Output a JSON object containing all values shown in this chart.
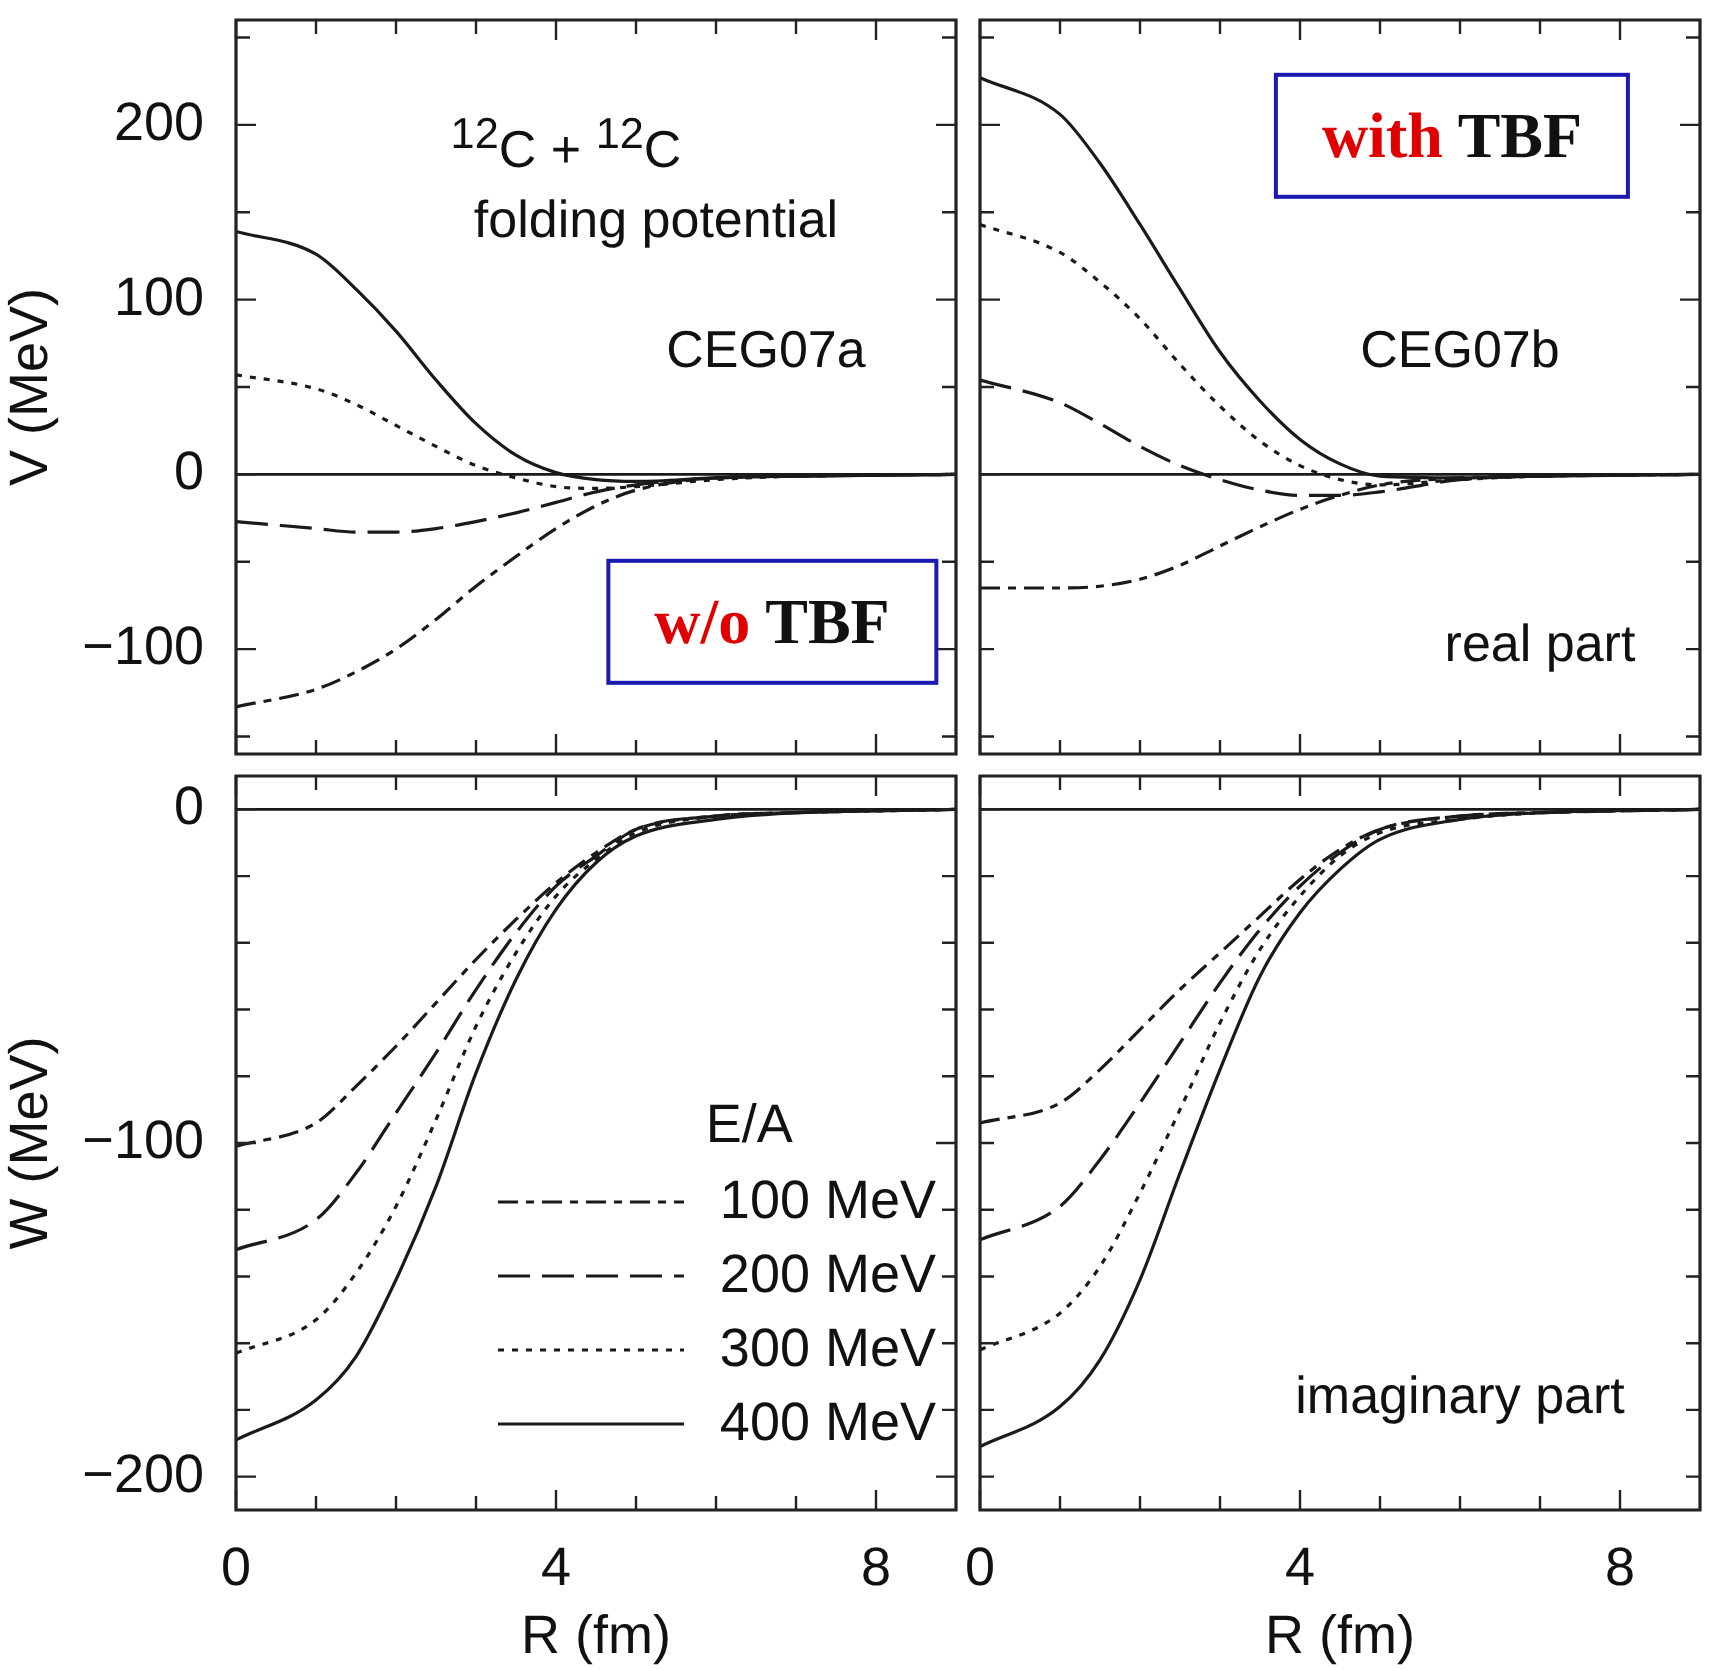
{
  "chart_data": [
    {
      "type": "line",
      "ylabel": "V (MeV)",
      "annotations": [
        "$^{12}$C + $^{12}$C",
        "folding potential",
        "CEG07a",
        "w/o TBF"
      ],
      "x": [
        0,
        1,
        1.5,
        2,
        2.5,
        3,
        3.5,
        4,
        4.5,
        5,
        6,
        7,
        9
      ],
      "series": [
        {
          "color": "#1a1a1a",
          "line_style": "dashdot",
          "values": [
            -133,
            -123,
            -113,
            -100,
            -83,
            -64,
            -47,
            -31,
            -18,
            -9,
            -2,
            -1,
            0
          ]
        },
        {
          "color": "#1a1a1a",
          "line_style": "dashed",
          "values": [
            -27,
            -31,
            -33,
            -33,
            -31,
            -27,
            -22,
            -16,
            -10,
            -6,
            -2,
            -1,
            0
          ]
        },
        {
          "color": "#1a1a1a",
          "line_style": "dotted",
          "values": [
            57,
            49,
            40,
            28,
            16,
            5,
            -2,
            -7,
            -8,
            -7,
            -3,
            -1,
            0
          ]
        },
        {
          "color": "#1a1a1a",
          "line_style": "solid",
          "values": [
            139,
            126,
            106,
            82,
            54,
            29,
            11,
            1,
            -3,
            -4,
            -2,
            -1,
            0
          ]
        }
      ],
      "xlim": [
        0,
        9
      ],
      "xticks": [
        0,
        {
          "value": 1,
          "label": null
        },
        {
          "value": 2,
          "label": null
        },
        {
          "value": 3,
          "label": null
        },
        4,
        {
          "value": 5,
          "label": null
        },
        {
          "value": 6,
          "label": null
        },
        {
          "value": 7,
          "label": null
        },
        8
      ],
      "ylim": [
        -160,
        260
      ],
      "yticks": [
        {
          "value": -150,
          "label": null
        },
        {
          "value": -100,
          "label": "−100"
        },
        {
          "value": -50,
          "label": null
        },
        0,
        {
          "value": 50,
          "label": null
        },
        100,
        {
          "value": 150,
          "label": null
        },
        200,
        {
          "value": 250,
          "label": null
        }
      ],
      "ref_lines": [
        {
          "axis": "y",
          "value": 0,
          "color": "#1a1a1a"
        }
      ],
      "tick_labels": "y"
    },
    {
      "type": "line",
      "annotations": [
        "with TBF",
        "CEG07b",
        "real part"
      ],
      "x": [
        0,
        1,
        1.5,
        2,
        2.5,
        3,
        3.5,
        4,
        4.5,
        5,
        6,
        7,
        9
      ],
      "series": [
        {
          "color": "#1a1a1a",
          "line_style": "dashdot",
          "values": [
            -65,
            -65,
            -64,
            -60,
            -52,
            -41,
            -30,
            -20,
            -12,
            -6,
            -2,
            -1,
            0
          ]
        },
        {
          "color": "#1a1a1a",
          "line_style": "dashed",
          "values": [
            54,
            41,
            29,
            16,
            5,
            -3,
            -9,
            -12,
            -12,
            -10,
            -3,
            -1,
            0
          ]
        },
        {
          "color": "#1a1a1a",
          "line_style": "dotted",
          "values": [
            143,
            127,
            110,
            89,
            63,
            39,
            19,
            5,
            -3,
            -6,
            -3,
            -1,
            0
          ]
        },
        {
          "color": "#1a1a1a",
          "line_style": "solid",
          "values": [
            227,
            206,
            178,
            143,
            106,
            70,
            42,
            20,
            6,
            -1,
            -2,
            -1,
            0
          ]
        }
      ],
      "xlim": [
        0,
        9
      ],
      "xticks": [
        0,
        {
          "value": 1,
          "label": null
        },
        {
          "value": 2,
          "label": null
        },
        {
          "value": 3,
          "label": null
        },
        4,
        {
          "value": 5,
          "label": null
        },
        {
          "value": 6,
          "label": null
        },
        {
          "value": 7,
          "label": null
        },
        8
      ],
      "ylim": [
        -160,
        260
      ],
      "yticks": [
        {
          "value": -150,
          "label": null
        },
        {
          "value": -100,
          "label": null
        },
        {
          "value": -50,
          "label": null
        },
        0,
        {
          "value": 50,
          "label": null
        },
        100,
        {
          "value": 150,
          "label": null
        },
        200,
        {
          "value": 250,
          "label": null
        }
      ],
      "ref_lines": [
        {
          "axis": "y",
          "value": 0,
          "color": "#1a1a1a"
        }
      ],
      "tick_labels": false
    },
    {
      "type": "line",
      "xlabel": "R (fm)",
      "ylabel": "W (MeV)",
      "legend_title": "E/A",
      "legend": "bottom right",
      "x": [
        0,
        1,
        1.5,
        2,
        2.5,
        3,
        3.5,
        4,
        4.5,
        5,
        6,
        7,
        9
      ],
      "series": [
        {
          "name": "100 MeV",
          "color": "#1a1a1a",
          "line_style": "dashdot",
          "values": [
            -101,
            -94,
            -83,
            -71,
            -58,
            -45,
            -33,
            -22,
            -13,
            -6,
            -2,
            -1,
            0
          ]
        },
        {
          "name": "200 MeV",
          "color": "#1a1a1a",
          "line_style": "dashed",
          "values": [
            -132,
            -123,
            -109,
            -91,
            -73,
            -54,
            -37,
            -23,
            -14,
            -6,
            -2,
            -1,
            0
          ]
        },
        {
          "name": "300 MeV",
          "color": "#1a1a1a",
          "line_style": "dotted",
          "values": [
            -163,
            -153,
            -139,
            -119,
            -93,
            -65,
            -43,
            -26,
            -15,
            -7,
            -2,
            -1,
            0
          ]
        },
        {
          "name": "400 MeV",
          "color": "#1a1a1a",
          "line_style": "solid",
          "values": [
            -189,
            -177,
            -164,
            -141,
            -113,
            -79,
            -51,
            -30,
            -16,
            -8,
            -3,
            -1,
            0
          ]
        }
      ],
      "xlim": [
        0,
        9
      ],
      "xticks": [
        0,
        {
          "value": 1,
          "label": null
        },
        {
          "value": 2,
          "label": null
        },
        {
          "value": 3,
          "label": null
        },
        4,
        {
          "value": 5,
          "label": null
        },
        {
          "value": 6,
          "label": null
        },
        {
          "value": 7,
          "label": null
        },
        8
      ],
      "ylim": [
        -210,
        10
      ],
      "yticks": [
        {
          "value": -200,
          "label": "−200"
        },
        {
          "value": -180,
          "label": null
        },
        {
          "value": -160,
          "label": null
        },
        {
          "value": -140,
          "label": null
        },
        {
          "value": -120,
          "label": null
        },
        {
          "value": -100,
          "label": "−100"
        },
        {
          "value": -80,
          "label": null
        },
        {
          "value": -60,
          "label": null
        },
        {
          "value": -40,
          "label": null
        },
        {
          "value": -20,
          "label": null
        },
        0
      ],
      "ref_lines": [
        {
          "axis": "y",
          "value": 0,
          "color": "#1a1a1a"
        }
      ]
    },
    {
      "type": "line",
      "xlabel": "R (fm)",
      "annotations": [
        "imaginary part"
      ],
      "x": [
        0,
        1,
        1.5,
        2,
        2.5,
        3,
        3.5,
        4,
        4.5,
        5,
        6,
        7,
        9
      ],
      "series": [
        {
          "color": "#1a1a1a",
          "line_style": "dashdot",
          "values": [
            -94,
            -88,
            -78,
            -66,
            -54,
            -43,
            -32,
            -21,
            -12,
            -6,
            -2,
            -1,
            0
          ]
        },
        {
          "color": "#1a1a1a",
          "line_style": "dashed",
          "values": [
            -129,
            -119,
            -105,
            -88,
            -70,
            -52,
            -36,
            -23,
            -13,
            -6,
            -2,
            -1,
            0
          ]
        },
        {
          "color": "#1a1a1a",
          "line_style": "dotted",
          "values": [
            -162,
            -151,
            -137,
            -115,
            -90,
            -64,
            -42,
            -26,
            -14,
            -7,
            -3,
            -1,
            0
          ]
        },
        {
          "color": "#1a1a1a",
          "line_style": "solid",
          "values": [
            -191,
            -179,
            -165,
            -141,
            -109,
            -78,
            -50,
            -31,
            -18,
            -9,
            -3,
            -1,
            0
          ]
        }
      ],
      "xlim": [
        0,
        9
      ],
      "xticks": [
        0,
        {
          "value": 1,
          "label": null
        },
        {
          "value": 2,
          "label": null
        },
        {
          "value": 3,
          "label": null
        },
        4,
        {
          "value": 5,
          "label": null
        },
        {
          "value": 6,
          "label": null
        },
        {
          "value": 7,
          "label": null
        },
        8
      ],
      "ylim": [
        -210,
        10
      ],
      "yticks": [
        {
          "value": -200,
          "label": null
        },
        {
          "value": -180,
          "label": null
        },
        {
          "value": -160,
          "label": null
        },
        {
          "value": -140,
          "label": null
        },
        {
          "value": -120,
          "label": null
        },
        {
          "value": -100,
          "label": null
        },
        {
          "value": -80,
          "label": null
        },
        {
          "value": -60,
          "label": null
        },
        {
          "value": -40,
          "label": null
        },
        {
          "value": -20,
          "label": null
        },
        0
      ],
      "ref_lines": [
        {
          "axis": "y",
          "value": 0,
          "color": "#1a1a1a"
        }
      ],
      "tick_labels": "x"
    }
  ]
}
